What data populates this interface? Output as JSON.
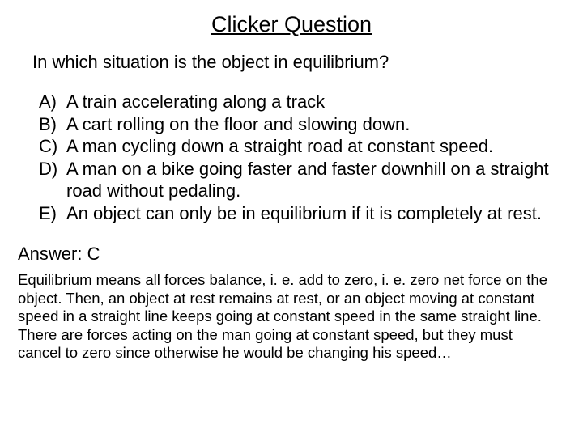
{
  "title": "Clicker Question",
  "question": "In which situation is the object in equilibrium?",
  "options": [
    {
      "letter": "A)",
      "text": "A train accelerating along a track"
    },
    {
      "letter": "B)",
      "text": "A cart rolling on the floor and slowing down."
    },
    {
      "letter": "C)",
      "text": "A man cycling down a straight road at constant speed."
    },
    {
      "letter": "D)",
      "text": "A man on a bike going faster and faster downhill on a straight road without pedaling."
    },
    {
      "letter": "E)",
      "text": "An object can only be in equilibrium if it is completely at rest."
    }
  ],
  "answer_label": "Answer: C",
  "explanation": "Equilibrium means all forces balance, i. e. add to zero, i. e. zero net force on the object. Then, an object at rest remains at rest, or an object moving at constant speed in a straight line keeps going at constant speed in the same straight line. There are forces acting on the man going at constant speed, but they must cancel to zero since otherwise he would be changing his speed…",
  "colors": {
    "background": "#ffffff",
    "text": "#000000"
  },
  "typography": {
    "family": "Arial",
    "title_fontsize": 27,
    "question_fontsize": 22,
    "option_fontsize": 22,
    "answer_fontsize": 22,
    "explanation_fontsize": 18.5
  }
}
